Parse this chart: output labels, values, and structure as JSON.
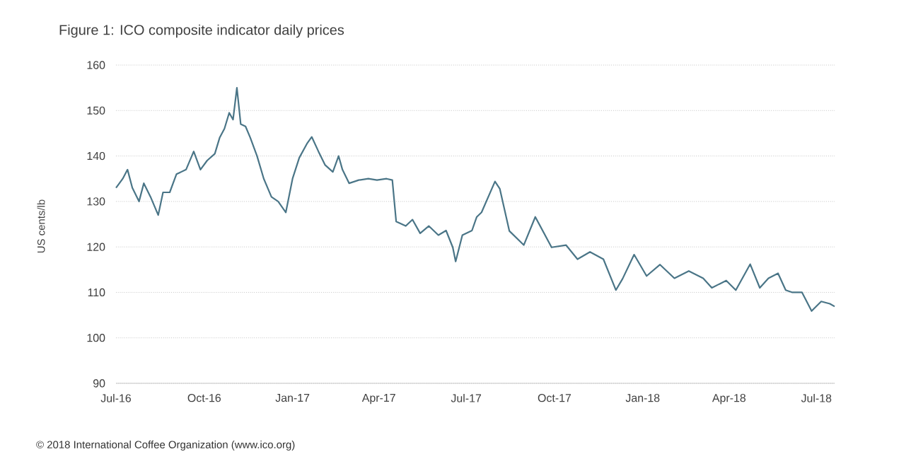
{
  "chart_data": {
    "type": "line",
    "title": "Figure 1: ICO composite indicator daily prices",
    "ylabel": "US cents/lb",
    "annotations": [
      "© 2018 International Coffee Organization (www.ico.org)"
    ],
    "xlim": [
      "2016-07-01",
      "2018-07-20"
    ],
    "xticks": [
      {
        "value": "2016-07-01",
        "label": "Jul-16"
      },
      {
        "value": "2016-10-01",
        "label": "Oct-16"
      },
      {
        "value": "2017-01-01",
        "label": "Jan-17"
      },
      {
        "value": "2017-04-01",
        "label": "Apr-17"
      },
      {
        "value": "2017-07-01",
        "label": "Jul-17"
      },
      {
        "value": "2017-10-01",
        "label": "Oct-17"
      },
      {
        "value": "2018-01-01",
        "label": "Jan-18"
      },
      {
        "value": "2018-04-01",
        "label": "Apr-18"
      },
      {
        "value": "2018-07-01",
        "label": "Jul-18"
      }
    ],
    "ylim": [
      90,
      160
    ],
    "yticks": [
      90,
      100,
      110,
      120,
      130,
      140,
      150,
      160
    ],
    "grid": "y",
    "marker": "none",
    "line_style": "solid",
    "x": [
      "2016-07-01",
      "2016-07-08",
      "2016-07-13",
      "2016-07-18",
      "2016-07-25",
      "2016-07-30",
      "2016-08-06",
      "2016-08-14",
      "2016-08-19",
      "2016-08-26",
      "2016-09-02",
      "2016-09-12",
      "2016-09-20",
      "2016-09-27",
      "2016-10-04",
      "2016-10-12",
      "2016-10-17",
      "2016-10-22",
      "2016-10-27",
      "2016-10-31",
      "2016-11-04",
      "2016-11-08",
      "2016-11-13",
      "2016-11-18",
      "2016-11-25",
      "2016-12-02",
      "2016-12-10",
      "2016-12-17",
      "2016-12-25",
      "2017-01-01",
      "2017-01-08",
      "2017-01-16",
      "2017-01-21",
      "2017-01-28",
      "2017-02-04",
      "2017-02-12",
      "2017-02-18",
      "2017-02-22",
      "2017-03-01",
      "2017-03-11",
      "2017-03-21",
      "2017-03-30",
      "2017-04-09",
      "2017-04-15",
      "2017-04-19",
      "2017-04-29",
      "2017-05-06",
      "2017-05-14",
      "2017-05-23",
      "2017-06-02",
      "2017-06-10",
      "2017-06-17",
      "2017-06-20",
      "2017-06-27",
      "2017-07-07",
      "2017-07-12",
      "2017-07-17",
      "2017-07-31",
      "2017-08-05",
      "2017-08-15",
      "2017-08-30",
      "2017-09-11",
      "2017-09-28",
      "2017-10-13",
      "2017-10-25",
      "2017-11-07",
      "2017-11-21",
      "2017-12-04",
      "2017-12-11",
      "2017-12-23",
      "2018-01-05",
      "2018-01-19",
      "2018-02-03",
      "2018-02-18",
      "2018-03-05",
      "2018-03-14",
      "2018-03-29",
      "2018-04-08",
      "2018-04-23",
      "2018-05-03",
      "2018-05-12",
      "2018-05-22",
      "2018-05-30",
      "2018-06-06",
      "2018-06-16",
      "2018-06-26",
      "2018-07-06",
      "2018-07-15",
      "2018-07-20"
    ],
    "series": [
      {
        "color": "#4a7587",
        "values": [
          133,
          135,
          137,
          133,
          130,
          134,
          131,
          127,
          132,
          132,
          136,
          137,
          141,
          137,
          139,
          140.5,
          144,
          146,
          149.5,
          148,
          155,
          147,
          146.5,
          144,
          140,
          135,
          131,
          130,
          127.6,
          135,
          139.6,
          142.7,
          144.2,
          141,
          138,
          136.5,
          140,
          137,
          134,
          134.7,
          135,
          134.7,
          135,
          134.7,
          125.6,
          124.6,
          126,
          123,
          124.6,
          122.6,
          123.6,
          119.9,
          116.8,
          122.6,
          123.6,
          126.6,
          127.6,
          134.4,
          132.8,
          123.5,
          120.4,
          126.6,
          119.9,
          120.4,
          117.3,
          118.9,
          117.3,
          110.5,
          113,
          118.3,
          113.6,
          116.1,
          113.1,
          114.7,
          113.1,
          111,
          112.6,
          110.5,
          116.2,
          111,
          113.1,
          114.2,
          110.5,
          110,
          110,
          105.9,
          108,
          107.5,
          106.9
        ]
      }
    ]
  }
}
